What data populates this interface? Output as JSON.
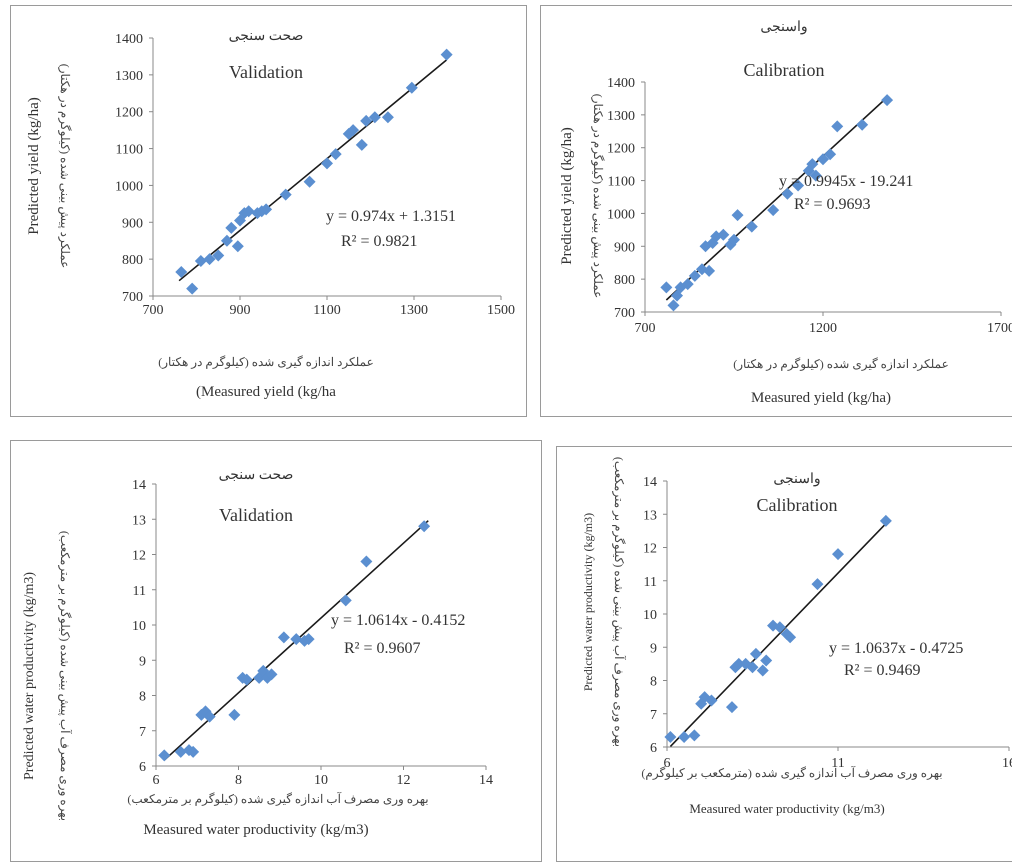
{
  "chart_data": [
    {
      "type": "scatter",
      "title_fa": "صحت سنجی",
      "title": "Validation",
      "xlabel_fa": "عملکرد اندازه گیری شده (کیلوگرم در هکتار)",
      "xlabel": "(Measured yield (kg/ha",
      "ylabel": "Predicted yield (kg/ha)",
      "ylabel_fa": "عملکرد پیش بینی شده (کیلوگرم در هکتار)",
      "xlim": [
        700,
        1500
      ],
      "ylim": [
        700,
        1400
      ],
      "xticks": [
        "700",
        "900",
        "1100",
        "1300",
        "1500"
      ],
      "xtick_values": [
        700,
        900,
        1100,
        1300,
        1500
      ],
      "yticks": [
        "700",
        "800",
        "900",
        "1000",
        "1100",
        "1200",
        "1300",
        "1400"
      ],
      "ytick_values": [
        700,
        800,
        900,
        1000,
        1100,
        1200,
        1300,
        1400
      ],
      "equation": "y = 0.974x + 1.3151",
      "r2": "R² = 0.9821",
      "trendline": {
        "slope": 0.974,
        "intercept": 1.3151,
        "x_range": [
          760,
          1375
        ]
      },
      "points": [
        [
          765,
          765
        ],
        [
          790,
          720
        ],
        [
          810,
          795
        ],
        [
          830,
          800
        ],
        [
          850,
          810
        ],
        [
          870,
          850
        ],
        [
          880,
          885
        ],
        [
          895,
          835
        ],
        [
          900,
          905
        ],
        [
          910,
          925
        ],
        [
          920,
          930
        ],
        [
          940,
          925
        ],
        [
          950,
          930
        ],
        [
          960,
          935
        ],
        [
          1005,
          975
        ],
        [
          1060,
          1010
        ],
        [
          1100,
          1060
        ],
        [
          1120,
          1085
        ],
        [
          1150,
          1140
        ],
        [
          1160,
          1150
        ],
        [
          1180,
          1110
        ],
        [
          1190,
          1175
        ],
        [
          1210,
          1185
        ],
        [
          1240,
          1185
        ],
        [
          1295,
          1265
        ],
        [
          1375,
          1355
        ]
      ],
      "marker_color": "#5b8fd0",
      "line_color": "#1a1a1a"
    },
    {
      "type": "scatter",
      "title_fa": "واسنجی",
      "title": "Calibration",
      "xlabel_fa": "عملکرد اندازه گیری شده (کیلوگرم در هکتار)",
      "xlabel": "Measured yield (kg/ha)",
      "ylabel": "Predicted yield (kg/ha)",
      "ylabel_fa": "عملکرد پیش بینی شده (کیلوگرم در هکتار)",
      "xlim": [
        700,
        1700
      ],
      "ylim": [
        700,
        1400
      ],
      "xticks": [
        "700",
        "1200",
        "1700"
      ],
      "xtick_values": [
        700,
        1200,
        1700
      ],
      "yticks": [
        "700",
        "800",
        "900",
        "1000",
        "1100",
        "1200",
        "1300",
        "1400"
      ],
      "ytick_values": [
        700,
        800,
        900,
        1000,
        1100,
        1200,
        1300,
        1400
      ],
      "equation": "y = 0.9945x - 19.241",
      "r2": "R² = 0.9693",
      "trendline": {
        "slope": 0.9945,
        "intercept": -19.241,
        "x_range": [
          760,
          1380
        ]
      },
      "points": [
        [
          760,
          775
        ],
        [
          780,
          720
        ],
        [
          790,
          750
        ],
        [
          800,
          775
        ],
        [
          820,
          785
        ],
        [
          840,
          810
        ],
        [
          860,
          830
        ],
        [
          870,
          900
        ],
        [
          880,
          825
        ],
        [
          890,
          910
        ],
        [
          900,
          930
        ],
        [
          920,
          935
        ],
        [
          940,
          905
        ],
        [
          950,
          920
        ],
        [
          960,
          995
        ],
        [
          1000,
          960
        ],
        [
          1060,
          1010
        ],
        [
          1100,
          1060
        ],
        [
          1130,
          1085
        ],
        [
          1160,
          1130
        ],
        [
          1170,
          1150
        ],
        [
          1180,
          1115
        ],
        [
          1200,
          1165
        ],
        [
          1220,
          1180
        ],
        [
          1240,
          1265
        ],
        [
          1310,
          1270
        ],
        [
          1380,
          1345
        ]
      ],
      "marker_color": "#5b8fd0",
      "line_color": "#1a1a1a"
    },
    {
      "type": "scatter",
      "title_fa": "صحت سنجی",
      "title": "Validation",
      "xlabel_fa": "بهره وری مصرف آب اندازه گیری شده (کیلوگرم بر مترمکعب)",
      "xlabel": "Measured water productivity (kg/m3)",
      "ylabel": "Predicted water productivity (kg/m3)",
      "ylabel_fa": "بهره وری مصرف آب پیش بینی شده (کیلوگرم بر مترمکعب)",
      "xlim": [
        6,
        14
      ],
      "ylim": [
        6,
        14
      ],
      "xticks": [
        "6",
        "8",
        "10",
        "12",
        "14"
      ],
      "xtick_values": [
        6,
        8,
        10,
        12,
        14
      ],
      "yticks": [
        "6",
        "7",
        "8",
        "9",
        "10",
        "11",
        "12",
        "13",
        "14"
      ],
      "ytick_values": [
        6,
        7,
        8,
        9,
        10,
        11,
        12,
        13,
        14
      ],
      "equation": "y = 1.0614x - 0.4152",
      "r2": "R² = 0.9607",
      "trendline": {
        "slope": 1.0614,
        "intercept": -0.4152,
        "x_range": [
          6.2,
          12.6
        ]
      },
      "points": [
        [
          6.2,
          6.3
        ],
        [
          6.6,
          6.4
        ],
        [
          6.8,
          6.45
        ],
        [
          6.9,
          6.4
        ],
        [
          7.1,
          7.45
        ],
        [
          7.2,
          7.55
        ],
        [
          7.3,
          7.4
        ],
        [
          7.9,
          7.45
        ],
        [
          8.1,
          8.5
        ],
        [
          8.2,
          8.45
        ],
        [
          8.5,
          8.5
        ],
        [
          8.6,
          8.7
        ],
        [
          8.7,
          8.5
        ],
        [
          8.8,
          8.6
        ],
        [
          9.1,
          9.65
        ],
        [
          9.4,
          9.6
        ],
        [
          9.6,
          9.55
        ],
        [
          9.7,
          9.6
        ],
        [
          10.6,
          10.7
        ],
        [
          11.1,
          11.8
        ],
        [
          12.5,
          12.8
        ]
      ],
      "marker_color": "#5b8fd0",
      "line_color": "#1a1a1a"
    },
    {
      "type": "scatter",
      "title_fa": "واسنجی",
      "title": "Calibration",
      "xlabel_fa": "بهره وری مصرف آب اندازه گیری شده (مترمکعب بر کیلوگرم)",
      "xlabel": "Measured water productivity (kg/m3)",
      "ylabel": "Predicted water productivity (kg/m3)",
      "ylabel_fa": "بهره وری مصرف آب پیش بینی شده (کیلوگرم بر مترمکعب)",
      "xlim": [
        6,
        16
      ],
      "ylim": [
        6,
        14
      ],
      "xticks": [
        "6",
        "11",
        "16"
      ],
      "xtick_values": [
        6,
        11,
        16
      ],
      "yticks": [
        "6",
        "7",
        "8",
        "9",
        "10",
        "11",
        "12",
        "13",
        "14"
      ],
      "ytick_values": [
        6,
        7,
        8,
        9,
        10,
        11,
        12,
        13,
        14
      ],
      "equation": "y = 1.0637x - 0.4725",
      "r2": "R² = 0.9469",
      "trendline": {
        "slope": 1.0637,
        "intercept": -0.4725,
        "x_range": [
          6.1,
          12.5
        ]
      },
      "points": [
        [
          6.1,
          6.3
        ],
        [
          6.5,
          6.3
        ],
        [
          6.8,
          6.35
        ],
        [
          7.0,
          7.3
        ],
        [
          7.1,
          7.5
        ],
        [
          7.3,
          7.4
        ],
        [
          7.9,
          7.2
        ],
        [
          8.0,
          8.4
        ],
        [
          8.1,
          8.5
        ],
        [
          8.3,
          8.5
        ],
        [
          8.5,
          8.4
        ],
        [
          8.6,
          8.8
        ],
        [
          8.8,
          8.3
        ],
        [
          8.9,
          8.6
        ],
        [
          9.1,
          9.65
        ],
        [
          9.3,
          9.6
        ],
        [
          9.5,
          9.4
        ],
        [
          9.6,
          9.3
        ],
        [
          10.4,
          10.9
        ],
        [
          11.0,
          11.8
        ],
        [
          12.4,
          12.8
        ]
      ],
      "marker_color": "#5b8fd0",
      "line_color": "#1a1a1a"
    }
  ]
}
